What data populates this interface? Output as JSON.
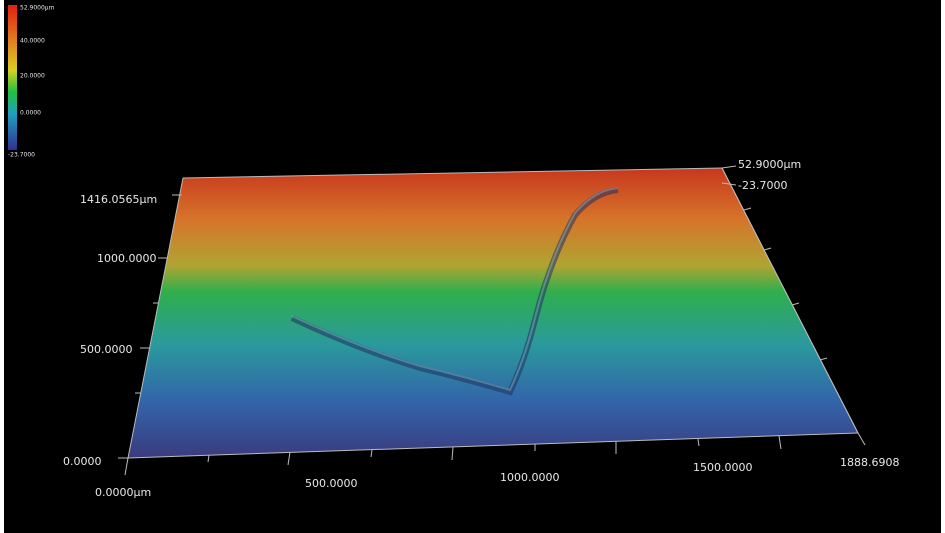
{
  "colorbar": {
    "labels": [
      "52.9000µm",
      "40.0000",
      "20.0000",
      "0.0000",
      "-23.7000"
    ]
  },
  "y_axis": {
    "labels": [
      "1416.0565µm",
      "1000.0000",
      "500.0000",
      "0.0000"
    ]
  },
  "x_axis": {
    "labels": [
      "0.0000µm",
      "500.0000",
      "1000.0000",
      "1500.0000",
      "1888.6908"
    ]
  },
  "z_axis": {
    "labels": [
      "52.9000µm",
      "-23.7000"
    ]
  }
}
